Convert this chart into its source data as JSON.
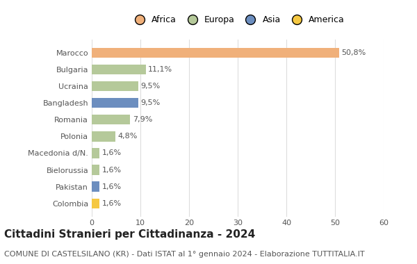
{
  "categories": [
    "Colombia",
    "Pakistan",
    "Bielorussia",
    "Macedonia d/N.",
    "Polonia",
    "Romania",
    "Bangladesh",
    "Ucraina",
    "Bulgaria",
    "Marocco"
  ],
  "values": [
    1.6,
    1.6,
    1.6,
    1.6,
    4.8,
    7.9,
    9.5,
    9.5,
    11.1,
    50.8
  ],
  "labels": [
    "1,6%",
    "1,6%",
    "1,6%",
    "1,6%",
    "4,8%",
    "7,9%",
    "9,5%",
    "9,5%",
    "11,1%",
    "50,8%"
  ],
  "colors": [
    "#f5c842",
    "#6c8ebf",
    "#b5c99a",
    "#b5c99a",
    "#b5c99a",
    "#b5c99a",
    "#6c8ebf",
    "#b5c99a",
    "#b5c99a",
    "#f0b07a"
  ],
  "legend_labels": [
    "Africa",
    "Europa",
    "Asia",
    "America"
  ],
  "legend_colors": [
    "#f0b07a",
    "#b5c99a",
    "#6c8ebf",
    "#f5c842"
  ],
  "xlim": [
    0,
    60
  ],
  "xticks": [
    0,
    10,
    20,
    30,
    40,
    50,
    60
  ],
  "title": "Cittadini Stranieri per Cittadinanza - 2024",
  "subtitle": "COMUNE DI CASTELSILANO (KR) - Dati ISTAT al 1° gennaio 2024 - Elaborazione TUTTITALIA.IT",
  "title_fontsize": 11,
  "subtitle_fontsize": 8,
  "bar_height": 0.6,
  "background_color": "#ffffff",
  "grid_color": "#dddddd",
  "label_fontsize": 8,
  "tick_fontsize": 8
}
